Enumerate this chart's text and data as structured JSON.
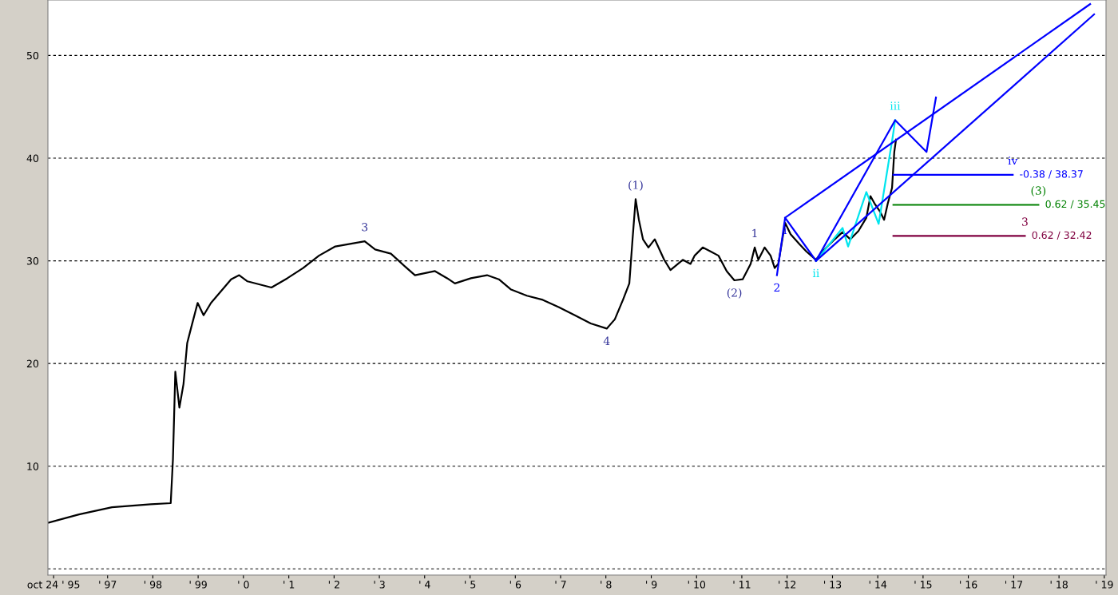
{
  "chart_data": {
    "type": "line",
    "xlim": [
      "1995-09-08",
      "2019-01-15"
    ],
    "ylim": [
      -0.6,
      55.4
    ],
    "xticks": [
      {
        "value": "1995-10-24",
        "label": "oct 24 ' 95"
      },
      {
        "value": "1997",
        "label": "' 97"
      },
      {
        "value": "1998",
        "label": "' 98"
      },
      {
        "value": "1999",
        "label": "' 99"
      },
      {
        "value": "2000",
        "label": "' 0"
      },
      {
        "value": "2001",
        "label": "' 1"
      },
      {
        "value": "2002",
        "label": "' 2"
      },
      {
        "value": "2003",
        "label": "' 3"
      },
      {
        "value": "2004",
        "label": "' 4"
      },
      {
        "value": "2005",
        "label": "' 5"
      },
      {
        "value": "2006",
        "label": "' 6"
      },
      {
        "value": "2007",
        "label": "' 7"
      },
      {
        "value": "2008",
        "label": "' 8"
      },
      {
        "value": "2009",
        "label": "' 9"
      },
      {
        "value": "2010",
        "label": "' 10"
      },
      {
        "value": "2011",
        "label": "' 11"
      },
      {
        "value": "2012",
        "label": "' 12"
      },
      {
        "value": "2013",
        "label": "' 13"
      },
      {
        "value": "2014",
        "label": "' 14"
      },
      {
        "value": "2015",
        "label": "' 15"
      },
      {
        "value": "2016",
        "label": "' 16"
      },
      {
        "value": "2017",
        "label": "' 17"
      },
      {
        "value": "2018",
        "label": "' 18"
      },
      {
        "value": "2019",
        "label": "' 19"
      }
    ],
    "yticks": [
      {
        "value": 0,
        "label": null
      },
      10,
      20,
      30,
      40,
      50
    ],
    "grid": "y",
    "legend": false,
    "series": [
      {
        "color": "#000000",
        "x": [
          "1995-09-15",
          "1996-05-15",
          "1997-02-05",
          "1997-12-15",
          "1998-05-25",
          "1998-06-12",
          "1998-07-01",
          "1998-08-03",
          "1998-09-05",
          "1998-10-05",
          "1998-11-06",
          "1998-12-28",
          "1999-02-14",
          "1999-04-15",
          "1999-09-24",
          "1999-11-28",
          "2000-02-03",
          "2000-08-14",
          "2000-12-20",
          "2001-04-26",
          "2001-09-01",
          "2002-01-11",
          "2002-09-05",
          "2002-11-28",
          "2003-04-04",
          "2003-08-10",
          "2003-10-15",
          "2004-03-24",
          "2004-07-01",
          "2004-09-01",
          "2005-01-08",
          "2005-05-18",
          "2005-08-21",
          "2005-11-28",
          "2006-04-04",
          "2006-08-10",
          "2006-12-16",
          "2007-04-26",
          "2007-09-01",
          "2008-01-08",
          "2008-03-13",
          "2008-05-18",
          "2008-07-08",
          "2008-08-03",
          "2008-08-28",
          "2008-09-23",
          "2008-10-26",
          "2008-12-09",
          "2009-01-29",
          "2009-04-15",
          "2009-06-05",
          "2009-09-12",
          "2009-11-13",
          "2009-12-16",
          "2010-02-20",
          "2010-04-26",
          "2010-06-27",
          "2010-09-01",
          "2010-11-02",
          "2011-01-08",
          "2011-03-13",
          "2011-04-15",
          "2011-05-14",
          "2011-07-04",
          "2011-08-21",
          "2011-09-23",
          "2011-10-22",
          "2011-12-16",
          "2012-01-29",
          "2012-04-04",
          "2012-06-05",
          "2012-08-21",
          "2012-10-11",
          "2013-01-19",
          "2013-03-23",
          "2013-05-25",
          "2013-07-29",
          "2013-10-01",
          "2013-11-03",
          "2013-12-05",
          "2014-01-19",
          "2014-02-21",
          "2014-03-23",
          "2014-04-26",
          "2014-05-14",
          "2014-05-28"
        ],
        "values": [
          4.5,
          5.3,
          6.0,
          6.3,
          6.4,
          10.7,
          19.2,
          15.7,
          18.0,
          22.0,
          23.5,
          25.9,
          24.7,
          25.9,
          28.2,
          28.6,
          28.0,
          27.4,
          28.3,
          29.3,
          30.5,
          31.4,
          31.9,
          31.1,
          30.7,
          29.3,
          28.6,
          29.0,
          28.3,
          27.8,
          28.3,
          28.6,
          28.2,
          27.2,
          26.6,
          26.2,
          25.5,
          24.7,
          23.9,
          23.4,
          24.3,
          26.2,
          27.8,
          32.1,
          36.0,
          34.0,
          32.1,
          31.3,
          32.1,
          30.1,
          29.1,
          30.1,
          29.7,
          30.5,
          31.3,
          30.9,
          30.5,
          29.0,
          28.1,
          28.2,
          29.7,
          31.3,
          30.1,
          31.3,
          30.5,
          29.3,
          29.7,
          33.7,
          32.6,
          31.7,
          30.9,
          30.1,
          30.9,
          32.1,
          32.8,
          32.1,
          32.9,
          34.2,
          36.3,
          35.6,
          34.8,
          34.0,
          35.6,
          37.1,
          40.6,
          41.8
        ]
      },
      {
        "color": "#00e5ee",
        "x": [
          "2012-08-21",
          "2013-03-23",
          "2013-05-07",
          "2013-10-01",
          "2014-01-08",
          "2014-05-03",
          "2014-05-21"
        ],
        "values": [
          30.0,
          33.2,
          31.4,
          36.7,
          33.6,
          42.2,
          43.7
        ]
      },
      {
        "color": "#0000ff",
        "x": [
          "2011-12-16",
          "2018-09-09"
        ],
        "values": [
          34.2,
          55.0
        ]
      },
      {
        "color": "#0000ff",
        "x": [
          "2012-08-21",
          "2018-10-11"
        ],
        "values": [
          30.0,
          54.0
        ]
      },
      {
        "color": "#0000ff",
        "x": [
          "2011-10-11",
          "2011-12-16",
          "2012-08-21",
          "2014-05-21",
          "2015-01-29",
          "2015-04-15"
        ],
        "values": [
          28.6,
          34.2,
          30.0,
          43.7,
          40.6,
          45.9
        ]
      },
      {
        "color": "#0000ff",
        "x": [
          "2014-05-07",
          "2016-12-24"
        ],
        "values": [
          38.37,
          38.37
        ],
        "value_labels": [
          null,
          "-0.38 / 38.37"
        ]
      },
      {
        "color": "#008000",
        "x": [
          "2014-05-07",
          "2017-07-19"
        ],
        "values": [
          35.45,
          35.45
        ],
        "value_labels": [
          null,
          "0.62 / 35.45"
        ]
      },
      {
        "color": "#800040",
        "x": [
          "2014-05-07",
          "2017-04-01"
        ],
        "values": [
          32.42,
          32.42
        ],
        "value_labels": [
          null,
          "0.62 / 32.42"
        ]
      }
    ],
    "annotations": [
      {
        "text": "(1)",
        "x": "2008-08-28",
        "y": 36.0
      },
      {
        "text": "(2)",
        "x": "2010-11-02",
        "y": 28.1
      },
      {
        "text": "(3)",
        "x": "2017-07-19",
        "y": 35.45
      },
      {
        "text": "3",
        "x": "2002-09-05",
        "y": 31.9
      },
      {
        "text": "4",
        "x": "2008-01-08",
        "y": 23.4
      },
      {
        "text": "1",
        "x": "2011-04-15",
        "y": 31.3
      },
      {
        "text": "2",
        "x": "2011-10-11",
        "y": 28.6
      },
      {
        "text": "3",
        "x": "2017-04-01",
        "y": 32.42
      },
      {
        "text": "i",
        "x": "2011-12-16",
        "y": 34.2
      },
      {
        "text": "ii",
        "x": "2012-08-21",
        "y": 30.0
      },
      {
        "text": "iii",
        "x": "2014-05-21",
        "y": 43.7
      },
      {
        "text": "iv",
        "x": "2016-12-24",
        "y": 38.37
      }
    ]
  }
}
